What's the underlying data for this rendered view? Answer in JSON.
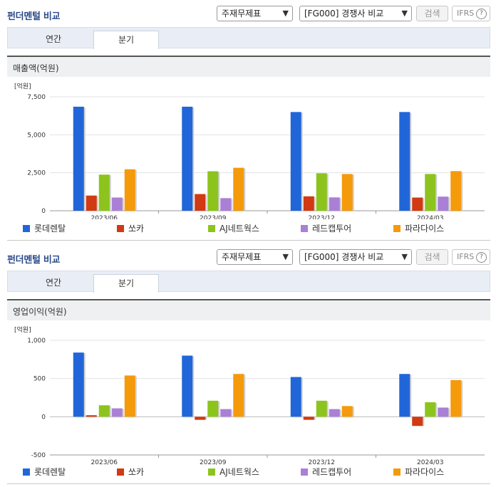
{
  "header": {
    "title": "펀더멘털 비교",
    "select1": "주재무제표",
    "select2": "[FG000] 경쟁사 비교",
    "search_label": "검색",
    "ifrs_label": "IFRS",
    "help_glyph": "?"
  },
  "tabs": [
    {
      "label": "연간",
      "active": false
    },
    {
      "label": "분기",
      "active": true
    }
  ],
  "panels": [
    {
      "subtitle": "매출액(억원)",
      "unit": "[억원]"
    },
    {
      "subtitle": "영업이익(억원)",
      "unit": "[억원]"
    }
  ],
  "legend": [
    {
      "name": "롯데렌탈",
      "color": "#2166d9"
    },
    {
      "name": "쏘카",
      "color": "#d13a12"
    },
    {
      "name": "AJ네트웍스",
      "color": "#8cc41d"
    },
    {
      "name": "레드캡투어",
      "color": "#a980d6"
    },
    {
      "name": "파라다이스",
      "color": "#f59a0b"
    }
  ],
  "chart_data": [
    {
      "type": "bar",
      "title": "매출액(억원)",
      "ylabel": "[억원]",
      "categories": [
        "2023/06",
        "2023/09",
        "2023/12",
        "2024/03"
      ],
      "ylim": [
        0,
        7500
      ],
      "yticks": [
        0,
        2500,
        5000,
        7500
      ],
      "ytick_labels": [
        "0",
        "2,500",
        "5,000",
        "7,500"
      ],
      "series": [
        {
          "name": "롯데렌탈",
          "values": [
            6850,
            6850,
            6500,
            6500
          ]
        },
        {
          "name": "쏘카",
          "values": [
            1000,
            1100,
            950,
            870
          ]
        },
        {
          "name": "AJ네트웍스",
          "values": [
            2380,
            2600,
            2470,
            2420
          ]
        },
        {
          "name": "레드캡투어",
          "values": [
            870,
            830,
            880,
            930
          ]
        },
        {
          "name": "파라다이스",
          "values": [
            2730,
            2830,
            2420,
            2610
          ]
        }
      ]
    },
    {
      "type": "bar",
      "title": "영업이익(억원)",
      "ylabel": "[억원]",
      "categories": [
        "2023/06",
        "2023/09",
        "2023/12",
        "2024/03"
      ],
      "ylim": [
        -500,
        1000
      ],
      "yticks": [
        -500,
        0,
        500,
        1000
      ],
      "ytick_labels": [
        "-500",
        "0",
        "500",
        "1,000"
      ],
      "series": [
        {
          "name": "롯데렌탈",
          "values": [
            840,
            800,
            520,
            560
          ]
        },
        {
          "name": "쏘카",
          "values": [
            20,
            -40,
            -40,
            -120
          ]
        },
        {
          "name": "AJ네트웍스",
          "values": [
            150,
            210,
            210,
            190
          ]
        },
        {
          "name": "레드캡투어",
          "values": [
            110,
            100,
            100,
            120
          ]
        },
        {
          "name": "파라다이스",
          "values": [
            540,
            560,
            140,
            480
          ]
        }
      ]
    }
  ]
}
